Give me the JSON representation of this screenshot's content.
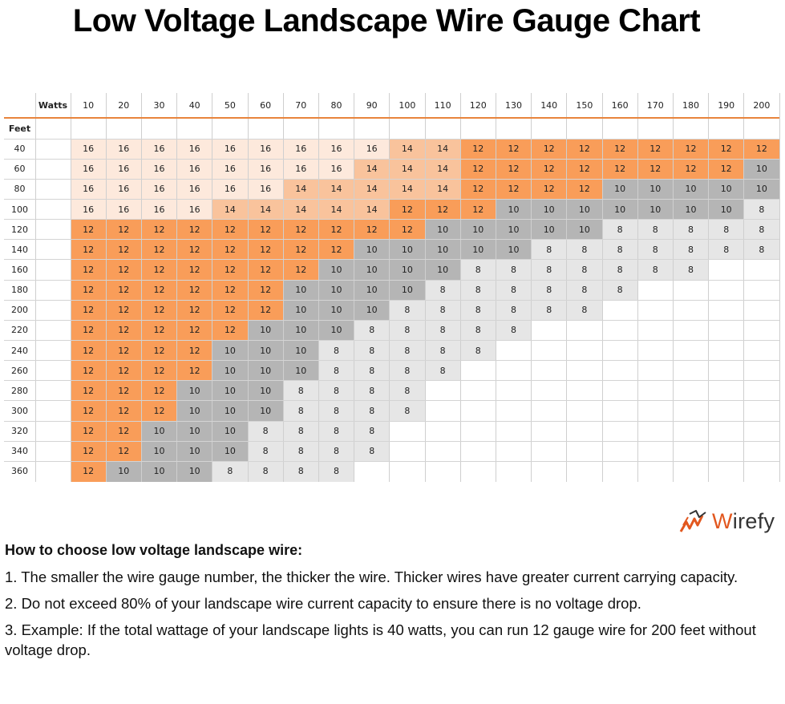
{
  "title": "Low Voltage Landscape Wire Gauge Chart",
  "logo": {
    "brand_first_letter": "W",
    "brand_rest": "irefy",
    "icon": "wire-coil-icon",
    "accent": "#e2571e"
  },
  "info": {
    "heading": "How to choose low voltage landscape wire:",
    "points": [
      "1. The smaller the wire gauge number, the thicker the wire. Thicker wires have greater current carrying capacity.",
      "2. Do not exceed 80% of your landscape wire current capacity to ensure there is no voltage drop.",
      "3. Example: If the total wattage of your landscape lights is 40 watts, you can run 12 gauge wire for 200 feet without voltage drop."
    ]
  },
  "colors": {
    "16": "#fde9dc",
    "14": "#f9c39c",
    "12": "#f99d59",
    "10": "#b5b5b5",
    "8": "#e6e6e6",
    "empty": "#ffffff",
    "header_rule": "#e8843c"
  },
  "chart_data": {
    "type": "table",
    "title": "Low Voltage Landscape Wire Gauge Chart",
    "column_header_label": "Watts",
    "row_header_label": "Feet",
    "watts": [
      10,
      20,
      30,
      40,
      50,
      60,
      70,
      80,
      90,
      100,
      110,
      120,
      130,
      140,
      150,
      160,
      170,
      180,
      190,
      200
    ],
    "feet": [
      40,
      60,
      80,
      100,
      120,
      140,
      160,
      180,
      200,
      220,
      240,
      260,
      280,
      300,
      320,
      340,
      360
    ],
    "gauge": [
      [
        16,
        16,
        16,
        16,
        16,
        16,
        16,
        16,
        16,
        14,
        14,
        12,
        12,
        12,
        12,
        12,
        12,
        12,
        12,
        12
      ],
      [
        16,
        16,
        16,
        16,
        16,
        16,
        16,
        16,
        14,
        14,
        14,
        12,
        12,
        12,
        12,
        12,
        12,
        12,
        12,
        10
      ],
      [
        16,
        16,
        16,
        16,
        16,
        16,
        14,
        14,
        14,
        14,
        14,
        12,
        12,
        12,
        12,
        10,
        10,
        10,
        10,
        10
      ],
      [
        16,
        16,
        16,
        16,
        14,
        14,
        14,
        14,
        14,
        12,
        12,
        12,
        10,
        10,
        10,
        10,
        10,
        10,
        10,
        8
      ],
      [
        12,
        12,
        12,
        12,
        12,
        12,
        12,
        12,
        12,
        12,
        10,
        10,
        10,
        10,
        10,
        8,
        8,
        8,
        8,
        8
      ],
      [
        12,
        12,
        12,
        12,
        12,
        12,
        12,
        12,
        10,
        10,
        10,
        10,
        10,
        8,
        8,
        8,
        8,
        8,
        8,
        8
      ],
      [
        12,
        12,
        12,
        12,
        12,
        12,
        12,
        10,
        10,
        10,
        10,
        8,
        8,
        8,
        8,
        8,
        8,
        8,
        null,
        null
      ],
      [
        12,
        12,
        12,
        12,
        12,
        12,
        10,
        10,
        10,
        10,
        8,
        8,
        8,
        8,
        8,
        8,
        null,
        null,
        null,
        null
      ],
      [
        12,
        12,
        12,
        12,
        12,
        12,
        10,
        10,
        10,
        8,
        8,
        8,
        8,
        8,
        8,
        null,
        null,
        null,
        null,
        null
      ],
      [
        12,
        12,
        12,
        12,
        12,
        10,
        10,
        10,
        8,
        8,
        8,
        8,
        8,
        null,
        null,
        null,
        null,
        null,
        null,
        null
      ],
      [
        12,
        12,
        12,
        12,
        10,
        10,
        10,
        8,
        8,
        8,
        8,
        8,
        null,
        null,
        null,
        null,
        null,
        null,
        null,
        null
      ],
      [
        12,
        12,
        12,
        12,
        10,
        10,
        10,
        8,
        8,
        8,
        8,
        null,
        null,
        null,
        null,
        null,
        null,
        null,
        null,
        null
      ],
      [
        12,
        12,
        12,
        10,
        10,
        10,
        8,
        8,
        8,
        8,
        null,
        null,
        null,
        null,
        null,
        null,
        null,
        null,
        null,
        null
      ],
      [
        12,
        12,
        12,
        10,
        10,
        10,
        8,
        8,
        8,
        8,
        null,
        null,
        null,
        null,
        null,
        null,
        null,
        null,
        null,
        null
      ],
      [
        12,
        12,
        10,
        10,
        10,
        8,
        8,
        8,
        8,
        null,
        null,
        null,
        null,
        null,
        null,
        null,
        null,
        null,
        null,
        null
      ],
      [
        12,
        12,
        10,
        10,
        10,
        8,
        8,
        8,
        8,
        null,
        null,
        null,
        null,
        null,
        null,
        null,
        null,
        null,
        null,
        null
      ],
      [
        12,
        10,
        10,
        10,
        8,
        8,
        8,
        8,
        null,
        null,
        null,
        null,
        null,
        null,
        null,
        null,
        null,
        null,
        null,
        null
      ]
    ]
  }
}
